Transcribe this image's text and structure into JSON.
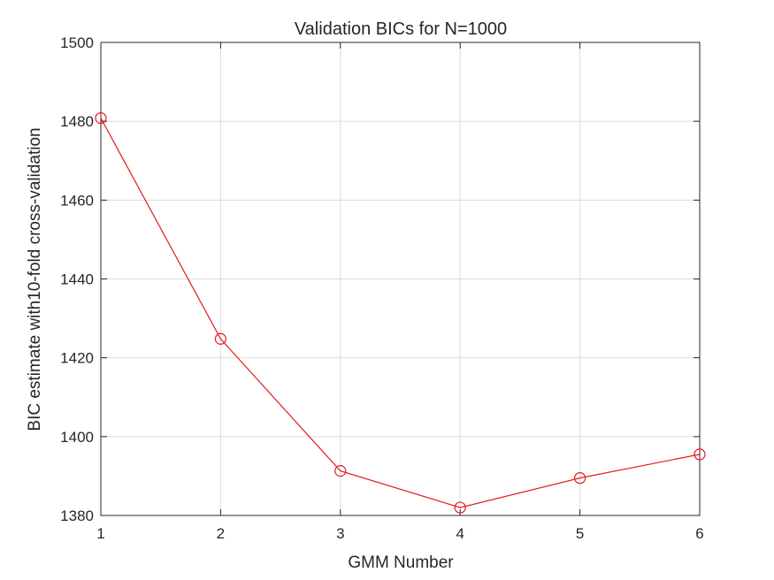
{
  "chart_data": {
    "type": "line",
    "title": "Validation BICs for N=1000",
    "xlabel": "GMM Number",
    "ylabel": "BIC estimate with10-fold cross-validation",
    "x": [
      1,
      2,
      3,
      4,
      5,
      6
    ],
    "series": [
      {
        "values": [
          1480.8,
          1424.8,
          1391.3,
          1382.0,
          1389.5,
          1395.5
        ],
        "color": "#e41a1c",
        "marker": "circle"
      }
    ],
    "xlim": [
      1,
      6
    ],
    "ylim": [
      1380,
      1500
    ],
    "xticks": [
      1,
      2,
      3,
      4,
      5,
      6
    ],
    "yticks": [
      1380,
      1400,
      1420,
      1440,
      1460,
      1480,
      1500
    ],
    "grid": true
  }
}
